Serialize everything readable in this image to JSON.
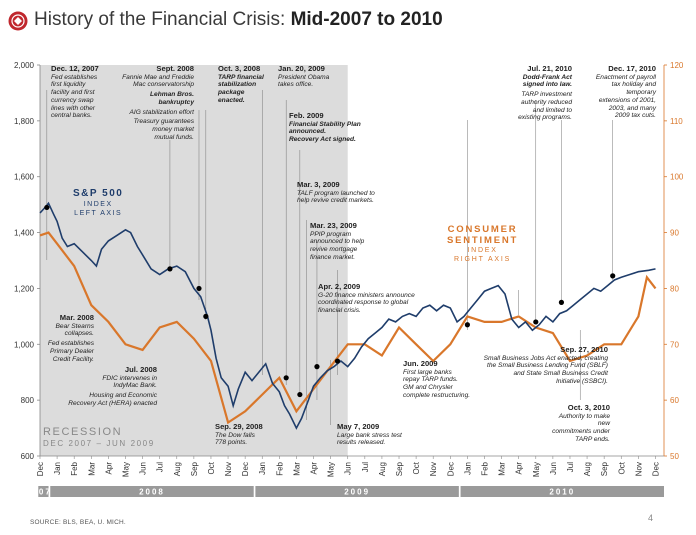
{
  "header": {
    "title_prefix": "History of the Financial Crisis: ",
    "title_bold": "Mid-2007 to 2010"
  },
  "footer": {
    "source": "SOURCE: BLS, BEA, U. MICH.",
    "page": "4"
  },
  "colors": {
    "sp500": "#1f3d6b",
    "sentiment": "#d9772b",
    "recession_shade": "#dcdcdc",
    "timeline_bar": "#9a9a9a",
    "logo": "#c0272d"
  },
  "recession": {
    "label_1": "RECESSION",
    "label_2": "DEC 2007 – JUN 2009"
  },
  "series_labels": {
    "sp_1": "S&P 500",
    "sp_2": "INDEX",
    "sp_3": "LEFT AXIS",
    "cs_1": "CONSUMER",
    "cs_2": "SENTIMENT",
    "cs_3": "INDEX",
    "cs_4": "RIGHT AXIS"
  },
  "annotations": {
    "a1": {
      "date": "Dec. 12, 2007",
      "lines": [
        "Fed establishes",
        "first liquidity",
        "facility and first",
        "currency swap",
        "lines with other",
        "central banks."
      ]
    },
    "a2": {
      "date": "Sept. 2008",
      "l1": "Fannie Mae and Freddie",
      "l2": "Mac conservatorship",
      "l3": "Lehman Bros.",
      "l4": "bankruptcy",
      "l5": "AIG stabilization effort",
      "l6": "Treasury guarantees",
      "l7": "money market",
      "l8": "mutual funds."
    },
    "a3": {
      "date": "Oct. 3, 2008",
      "lines": [
        "TARP financial",
        "stabilization",
        "package",
        "enacted."
      ]
    },
    "a4": {
      "date": "Jan. 20, 2009",
      "lines": [
        "President Obama",
        "takes office."
      ]
    },
    "a5": {
      "date": "Feb. 2009",
      "lines": [
        "Financial Stability Plan",
        "announced.",
        "Recovery Act signed."
      ]
    },
    "a6": {
      "date": "Mar. 3, 2009",
      "lines": [
        "TALF program launched to",
        "help revive credit markets."
      ]
    },
    "a7": {
      "date": "Mar. 23, 2009",
      "lines": [
        "PPIP program",
        "announced to help",
        "revive mortgage",
        "finance market."
      ]
    },
    "a8": {
      "date": "Apr. 2, 2009",
      "lines": [
        "G-20 finance ministers announce",
        "coordinated response to global",
        "financial crisis."
      ]
    },
    "a9": {
      "date": "Mar. 2008",
      "lines": [
        "Bear Stearns",
        "collapses.",
        "Fed establishes",
        "Primary Dealer",
        "Credit Facility."
      ]
    },
    "a10": {
      "date": "Jul. 2008",
      "lines": [
        "FDIC intervenes in",
        "IndyMac Bank.",
        "Housing and Economic",
        "Recovery Act (HERA) enacted"
      ]
    },
    "a11": {
      "date": "Sep. 29, 2008",
      "lines": [
        "The Dow falls",
        "778 points."
      ]
    },
    "a12": {
      "date": "Jun. 2009",
      "lines": [
        "First large banks",
        "repay TARP funds.",
        "GM and Chrysler",
        "complete restructuring."
      ]
    },
    "a13": {
      "date": "May 7, 2009",
      "lines": [
        "Large bank stress test",
        "results released."
      ]
    },
    "a14": {
      "date": "Jul. 21, 2010",
      "l1": "Dodd-Frank Act",
      "l2": "signed into law.",
      "l3": "TARP investment",
      "l4": "authority reduced",
      "l5": "and limited to",
      "l6": "existing programs."
    },
    "a15": {
      "date": "Dec. 17, 2010",
      "lines": [
        "Enactment of payroll",
        "tax holiday and",
        "temporary",
        "extensions of 2001,",
        "2003, and many",
        "2009 tax cuts."
      ]
    },
    "a16": {
      "date": "Sep. 27, 2010",
      "lines": [
        "Small Business Jobs Act enacted, creating",
        "the Small Business Lending Fund (SBLF)",
        "and State Small Business Credit",
        "Initiative (SSBCI)."
      ]
    },
    "a17": {
      "date": "Oct. 3, 2010",
      "lines": [
        "Authority to make new",
        "commitments under",
        "TARP ends."
      ]
    }
  },
  "chart_data": {
    "type": "line",
    "title": "History of the Financial Crisis: Mid-2007 to 2010",
    "left_axis": {
      "ticks": [
        "2,000",
        "1,800",
        "1,600",
        "1,400",
        "1,200",
        "1,000",
        "800",
        "600"
      ],
      "range": [
        600,
        2000
      ],
      "label": "S&P 500 INDEX LEFT AXIS"
    },
    "right_axis": {
      "ticks": [
        "120",
        "110",
        "100",
        "90",
        "80",
        "70",
        "60",
        "50"
      ],
      "range": [
        50,
        120
      ],
      "label": "CONSUMER SENTIMENT INDEX RIGHT AXIS"
    },
    "month_labels": [
      "Dec",
      "Jan",
      "Feb",
      "Mar",
      "Apr",
      "May",
      "Jun",
      "Jul",
      "Aug",
      "Sep",
      "Oct",
      "Nov",
      "Dec",
      "Jan",
      "Feb",
      "Mar",
      "Apr",
      "May",
      "Jun",
      "Jul",
      "Aug",
      "Sep",
      "Oct",
      "Nov",
      "Dec",
      "Jan",
      "Feb",
      "Mar",
      "Apr",
      "May",
      "Jun",
      "Jul",
      "Aug",
      "Sep",
      "Oct",
      "Nov",
      "Dec"
    ],
    "year_labels": [
      "'07",
      "2008",
      "2009",
      "2010"
    ],
    "x_range": [
      0,
      36.5
    ],
    "recession_months": [
      0,
      18
    ],
    "series": [
      {
        "name": "S&P 500",
        "axis": "left",
        "points": [
          [
            0,
            1470
          ],
          [
            0.3,
            1490
          ],
          [
            0.5,
            1505
          ],
          [
            0.8,
            1465
          ],
          [
            1.0,
            1440
          ],
          [
            1.3,
            1380
          ],
          [
            1.6,
            1350
          ],
          [
            2.0,
            1360
          ],
          [
            2.5,
            1330
          ],
          [
            3.0,
            1300
          ],
          [
            3.3,
            1280
          ],
          [
            3.6,
            1340
          ],
          [
            4.0,
            1370
          ],
          [
            4.5,
            1390
          ],
          [
            5.0,
            1410
          ],
          [
            5.3,
            1400
          ],
          [
            5.7,
            1350
          ],
          [
            6.0,
            1320
          ],
          [
            6.5,
            1270
          ],
          [
            7.0,
            1250
          ],
          [
            7.5,
            1270
          ],
          [
            8.0,
            1280
          ],
          [
            8.5,
            1260
          ],
          [
            9.0,
            1200
          ],
          [
            9.4,
            1170
          ],
          [
            9.8,
            1100
          ],
          [
            10.0,
            1050
          ],
          [
            10.3,
            950
          ],
          [
            10.6,
            880
          ],
          [
            11.0,
            850
          ],
          [
            11.3,
            780
          ],
          [
            11.6,
            840
          ],
          [
            12.0,
            900
          ],
          [
            12.4,
            870
          ],
          [
            12.8,
            900
          ],
          [
            13.2,
            930
          ],
          [
            13.6,
            860
          ],
          [
            14.0,
            830
          ],
          [
            14.3,
            780
          ],
          [
            14.6,
            750
          ],
          [
            15.0,
            700
          ],
          [
            15.3,
            735
          ],
          [
            15.7,
            800
          ],
          [
            16.0,
            850
          ],
          [
            16.4,
            880
          ],
          [
            16.8,
            905
          ],
          [
            17.2,
            920
          ],
          [
            17.6,
            940
          ],
          [
            18.0,
            920
          ],
          [
            18.4,
            950
          ],
          [
            18.8,
            990
          ],
          [
            19.2,
            1020
          ],
          [
            19.6,
            1040
          ],
          [
            20.0,
            1060
          ],
          [
            20.4,
            1090
          ],
          [
            20.8,
            1080
          ],
          [
            21.2,
            1100
          ],
          [
            21.6,
            1110
          ],
          [
            22.0,
            1100
          ],
          [
            22.4,
            1130
          ],
          [
            22.8,
            1140
          ],
          [
            23.2,
            1120
          ],
          [
            23.6,
            1140
          ],
          [
            24.0,
            1130
          ],
          [
            24.4,
            1080
          ],
          [
            24.8,
            1100
          ],
          [
            25.2,
            1130
          ],
          [
            25.6,
            1160
          ],
          [
            26.0,
            1190
          ],
          [
            26.4,
            1200
          ],
          [
            26.8,
            1210
          ],
          [
            27.2,
            1180
          ],
          [
            27.6,
            1090
          ],
          [
            28.0,
            1060
          ],
          [
            28.4,
            1080
          ],
          [
            28.8,
            1050
          ],
          [
            29.2,
            1070
          ],
          [
            29.6,
            1100
          ],
          [
            30.0,
            1080
          ],
          [
            30.4,
            1110
          ],
          [
            30.8,
            1120
          ],
          [
            31.2,
            1140
          ],
          [
            31.6,
            1160
          ],
          [
            32.0,
            1180
          ],
          [
            32.4,
            1200
          ],
          [
            32.8,
            1190
          ],
          [
            33.2,
            1210
          ],
          [
            33.6,
            1230
          ],
          [
            34.0,
            1240
          ],
          [
            34.5,
            1250
          ],
          [
            35.0,
            1260
          ],
          [
            35.6,
            1265
          ],
          [
            36.0,
            1270
          ]
        ]
      },
      {
        "name": "Consumer Sentiment",
        "axis": "right",
        "points": [
          [
            0,
            89.5
          ],
          [
            0.5,
            90
          ],
          [
            1,
            88
          ],
          [
            2,
            84
          ],
          [
            3,
            77
          ],
          [
            4,
            74
          ],
          [
            5,
            70
          ],
          [
            6,
            69
          ],
          [
            7,
            73
          ],
          [
            8,
            74
          ],
          [
            9,
            71
          ],
          [
            10,
            67
          ],
          [
            11,
            56
          ],
          [
            12,
            58
          ],
          [
            13,
            61
          ],
          [
            14,
            64
          ],
          [
            15,
            58
          ],
          [
            16,
            62
          ],
          [
            17,
            66
          ],
          [
            18,
            70
          ],
          [
            19,
            70
          ],
          [
            20,
            68
          ],
          [
            21,
            73
          ],
          [
            22,
            70
          ],
          [
            23,
            67
          ],
          [
            24,
            70
          ],
          [
            25,
            75
          ],
          [
            26,
            74
          ],
          [
            27,
            74
          ],
          [
            28,
            75
          ],
          [
            29,
            73
          ],
          [
            30,
            72
          ],
          [
            31,
            67
          ],
          [
            32,
            68
          ],
          [
            33,
            70
          ],
          [
            34,
            70
          ],
          [
            35,
            75
          ],
          [
            35.5,
            82
          ],
          [
            36,
            80
          ]
        ]
      }
    ],
    "event_markers": [
      [
        0.4,
        1490
      ],
      [
        7.6,
        1270
      ],
      [
        9.3,
        1200
      ],
      [
        9.7,
        1100
      ],
      [
        14.4,
        880
      ],
      [
        15.2,
        820
      ],
      [
        16.2,
        920
      ],
      [
        17.4,
        940
      ],
      [
        25.0,
        1070
      ],
      [
        29.0,
        1080
      ],
      [
        30.5,
        1150
      ],
      [
        33.5,
        1245
      ]
    ]
  }
}
